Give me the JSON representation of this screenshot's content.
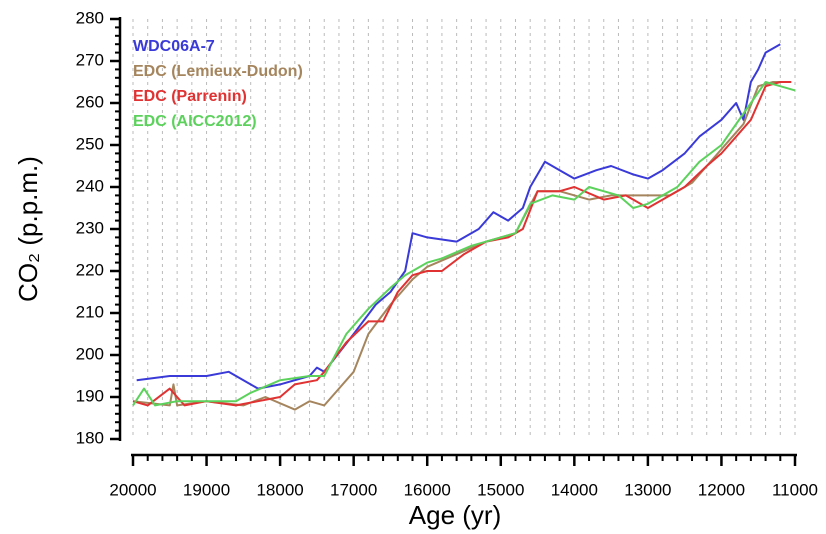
{
  "chart_data": {
    "type": "line",
    "xlabel": "Age (yr)",
    "ylabel": "CO₂ (p.p.m.)",
    "xlim": [
      20000,
      11000
    ],
    "ylim": [
      180,
      280
    ],
    "xticks": [
      20000,
      19000,
      18000,
      17000,
      16000,
      15000,
      14000,
      13000,
      12000,
      11000
    ],
    "yticks": [
      180,
      190,
      200,
      210,
      220,
      230,
      240,
      250,
      260,
      270,
      280
    ],
    "grid": true,
    "legend": "upper left",
    "series": [
      {
        "name": "WDC06A-7",
        "color": "#3a3ad8",
        "x": [
          19950,
          19500,
          19000,
          18700,
          18300,
          18000,
          17600,
          17500,
          17400,
          17000,
          16700,
          16500,
          16300,
          16200,
          16000,
          15600,
          15300,
          15100,
          14900,
          14700,
          14600,
          14400,
          14200,
          14000,
          13700,
          13500,
          13200,
          13000,
          12800,
          12500,
          12300,
          12000,
          11800,
          11700,
          11600,
          11500,
          11400,
          11200
        ],
        "values": [
          194,
          195,
          195,
          196,
          192,
          193,
          195,
          197,
          196,
          205,
          212,
          215,
          220,
          229,
          228,
          227,
          230,
          234,
          232,
          235,
          240,
          246,
          244,
          242,
          244,
          245,
          243,
          242,
          244,
          248,
          252,
          256,
          260,
          256,
          265,
          268,
          272,
          274
        ]
      },
      {
        "name": "EDC (Lemieux-Dudon)",
        "color": "#a5855d",
        "x": [
          20000,
          19500,
          19450,
          19400,
          19000,
          18500,
          18200,
          17800,
          17600,
          17400,
          17200,
          17000,
          16800,
          16500,
          16200,
          16000,
          15600,
          15200,
          14800,
          14500,
          14200,
          13800,
          13500,
          13000,
          12700,
          12400,
          12100,
          11900,
          11700,
          11500,
          11300,
          11100
        ],
        "values": [
          189,
          188,
          193,
          188,
          189,
          188,
          190,
          187,
          189,
          188,
          192,
          196,
          205,
          212,
          218,
          221,
          224,
          227,
          229,
          239,
          239,
          237,
          238,
          238,
          238,
          241,
          247,
          251,
          255,
          264,
          265,
          265
        ]
      },
      {
        "name": "EDC (Parrenin)",
        "color": "#e03232",
        "x": [
          20000,
          19800,
          19500,
          19300,
          19000,
          18600,
          18300,
          18000,
          17800,
          17500,
          17400,
          17100,
          16800,
          16600,
          16400,
          16200,
          16000,
          15800,
          15500,
          15200,
          14900,
          14700,
          14500,
          14200,
          14000,
          13600,
          13300,
          13000,
          12800,
          12500,
          12200,
          12000,
          11800,
          11600,
          11400,
          11200,
          11050
        ],
        "values": [
          189,
          188,
          192,
          188,
          189,
          188,
          189,
          190,
          193,
          194,
          196,
          203,
          208,
          208,
          215,
          219,
          220,
          220,
          224,
          227,
          228,
          230,
          239,
          239,
          240,
          237,
          238,
          235,
          237,
          240,
          245,
          248,
          252,
          256,
          264,
          265,
          265
        ]
      },
      {
        "name": "EDC (AICC2012)",
        "color": "#5cd25c",
        "x": [
          20000,
          19850,
          19700,
          19400,
          19000,
          18600,
          18400,
          18000,
          17600,
          17400,
          17100,
          16800,
          16500,
          16300,
          16000,
          15800,
          15400,
          15000,
          14800,
          14600,
          14300,
          14000,
          13800,
          13400,
          13200,
          13000,
          12600,
          12300,
          12000,
          11800,
          11600,
          11400,
          11200,
          11000
        ],
        "values": [
          188,
          192,
          188,
          189,
          189,
          189,
          191,
          194,
          195,
          195,
          205,
          211,
          216,
          219,
          222,
          223,
          226,
          228,
          229,
          236,
          238,
          237,
          240,
          238,
          235,
          236,
          240,
          246,
          250,
          255,
          260,
          265,
          264,
          263
        ]
      }
    ]
  }
}
